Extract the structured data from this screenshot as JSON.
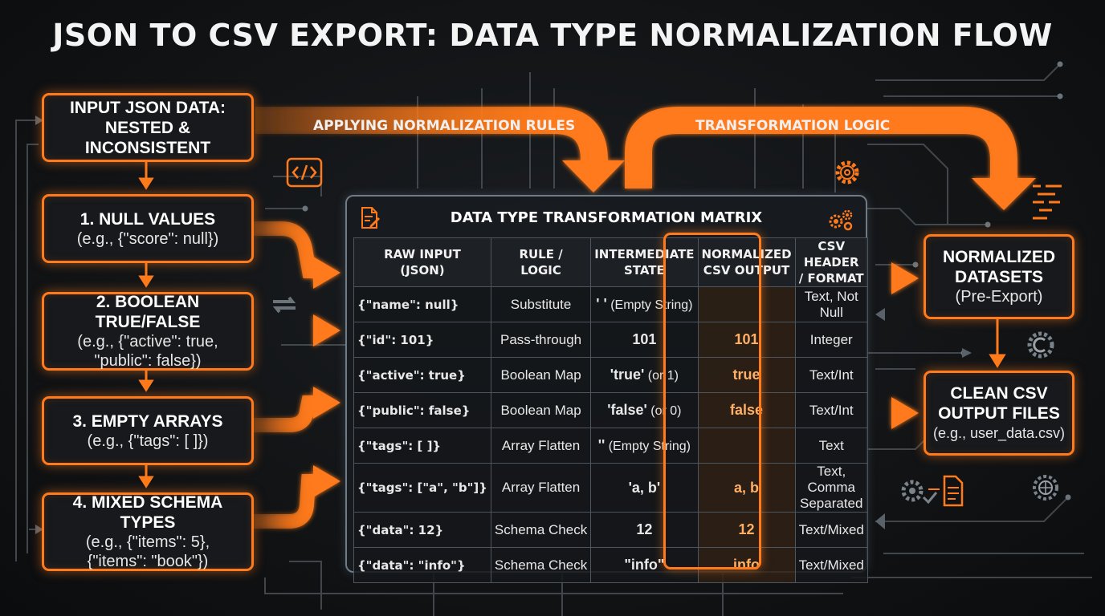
{
  "title": "JSON TO CSV EXPORT: DATA TYPE NORMALIZATION FLOW",
  "input_box": {
    "line1": "INPUT JSON DATA:",
    "line2": "NESTED & INCONSISTENT"
  },
  "flow_labels": {
    "left": "APPLYING NORMALIZATION RULES",
    "right": "TRANSFORMATION LOGIC"
  },
  "steps": [
    {
      "title": "1. NULL VALUES",
      "example": [
        "(e.g., {\"score\": null})"
      ]
    },
    {
      "title": "2. BOOLEAN TRUE/FALSE",
      "example": [
        "(e.g., {\"active\": true,",
        "\"public\": false})"
      ]
    },
    {
      "title": "3. EMPTY ARRAYS",
      "example": [
        "(e.g., {\"tags\": [ ]})"
      ]
    },
    {
      "title": "4. MIXED SCHEMA TYPES",
      "example": [
        "(e.g., {\"items\": 5},",
        "{\"items\": \"book\"})"
      ]
    }
  ],
  "matrix": {
    "title": "DATA TYPE TRANSFORMATION MATRIX",
    "headers": [
      [
        "RAW INPUT",
        "(JSON)"
      ],
      [
        "RULE /",
        "LOGIC"
      ],
      [
        "INTERMEDIATE",
        "STATE"
      ],
      [
        "NORMALIZED",
        "CSV OUTPUT"
      ],
      [
        "CSV HEADER",
        "/ FORMAT"
      ]
    ],
    "rows": [
      {
        "raw": "{\"name\": null}",
        "rule": "Substitute",
        "mid_bold": "' '",
        "mid_rest": " (Empty String)",
        "norm": "",
        "fmt": [
          "Text, Not Null"
        ]
      },
      {
        "raw": "{\"id\": 101}",
        "rule": "Pass-through",
        "mid_bold": "101",
        "mid_rest": "",
        "norm": "101",
        "fmt": [
          "Integer"
        ]
      },
      {
        "raw": "{\"active\": true}",
        "rule": "Boolean Map",
        "mid_bold": "'true'",
        "mid_rest": " (or 1)",
        "norm": "true",
        "fmt": [
          "Text/Int"
        ]
      },
      {
        "raw": "{\"public\": false}",
        "rule": "Boolean Map",
        "mid_bold": "'false'",
        "mid_rest": " (or 0)",
        "norm": "false",
        "fmt": [
          "Text/Int"
        ]
      },
      {
        "raw": "{\"tags\": [ ]}",
        "rule": "Array Flatten",
        "mid_bold": "''",
        "mid_rest": " (Empty String)",
        "norm": "",
        "fmt": [
          "Text"
        ]
      },
      {
        "raw": "{\"tags\": [\"a\", \"b\"]}",
        "rule": "Array Flatten",
        "mid_bold": "'a, b'",
        "mid_rest": "",
        "norm": "a, b",
        "fmt": [
          "Text, Comma",
          "Separated"
        ]
      },
      {
        "raw": "{\"data\": 12}",
        "rule": "Schema Check",
        "mid_bold": "12",
        "mid_rest": "",
        "norm": "12",
        "fmt": [
          "Text/Mixed"
        ]
      },
      {
        "raw": "{\"data\": \"info\"}",
        "rule": "Schema Check",
        "mid_bold": "\"info\"",
        "mid_rest": "",
        "norm": "info",
        "fmt": [
          "Text/Mixed"
        ]
      }
    ]
  },
  "outputs": [
    {
      "title": [
        "NORMALIZED",
        "DATASETS"
      ],
      "sub": "(Pre-Export)"
    },
    {
      "title": [
        "CLEAN CSV",
        "OUTPUT FILES"
      ],
      "sub": "(e.g., user_data.csv)"
    }
  ],
  "icons": [
    "code-tag-icon",
    "document-edit-icon",
    "gears-icon",
    "gear-icon",
    "sync-arrows-icon",
    "copyright-gear-icon",
    "gear-check-document-icon",
    "globe-gear-icon",
    "code-lines-icon"
  ],
  "colors": {
    "accent": "#ff7a1a",
    "background": "#121416",
    "panel": "#17191c",
    "highlight_text": "#ffb066"
  }
}
